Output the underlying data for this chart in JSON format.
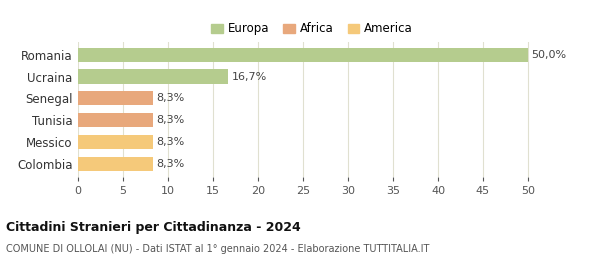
{
  "categories": [
    "Romania",
    "Ucraina",
    "Senegal",
    "Tunisia",
    "Messico",
    "Colombia"
  ],
  "values": [
    50.0,
    16.7,
    8.3,
    8.3,
    8.3,
    8.3
  ],
  "labels": [
    "50,0%",
    "16,7%",
    "8,3%",
    "8,3%",
    "8,3%",
    "8,3%"
  ],
  "colors": [
    "#b5cc8e",
    "#b5cc8e",
    "#e8a87c",
    "#e8a87c",
    "#f5c97a",
    "#f5c97a"
  ],
  "legend": [
    {
      "label": "Europa",
      "color": "#b5cc8e"
    },
    {
      "label": "Africa",
      "color": "#e8a87c"
    },
    {
      "label": "America",
      "color": "#f5c97a"
    }
  ],
  "title": "Cittadini Stranieri per Cittadinanza - 2024",
  "subtitle": "COMUNE DI OLLOLAI (NU) - Dati ISTAT al 1° gennaio 2024 - Elaborazione TUTTITALIA.IT",
  "xlim": [
    0,
    52
  ],
  "xticks": [
    0,
    5,
    10,
    15,
    20,
    25,
    30,
    35,
    40,
    45,
    50
  ],
  "background_color": "#ffffff",
  "grid_color": "#e0e0d0",
  "bar_height": 0.65,
  "label_fontsize": 8,
  "ytick_fontsize": 8.5,
  "xtick_fontsize": 8
}
